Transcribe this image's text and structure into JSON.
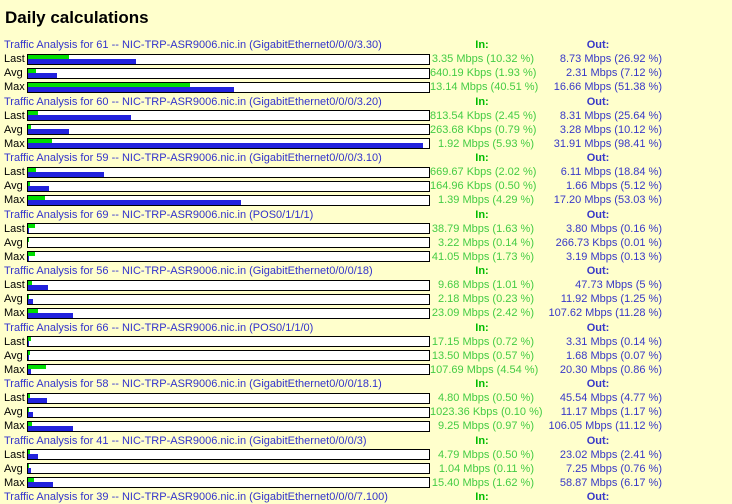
{
  "page": {
    "title": "Daily calculations"
  },
  "columns": {
    "in_label": "In:",
    "out_label": "Out:"
  },
  "colors": {
    "background": "#ffffcc",
    "section_title": "#3333cc",
    "in_text": "#00bb00",
    "out_text": "#3838c8",
    "bar_in": "#00dd00",
    "bar_out": "#2222dd"
  },
  "chart_data": {
    "type": "bar",
    "note": "MRTG-style horizontal dual bars; bar length = percent of link capacity",
    "ylim": [
      0,
      100
    ]
  },
  "sections": [
    {
      "title": "Traffic Analysis for 61 -- NIC-TRP-ASR9006.nic.in (GigabitEthernet0/0/0/3.30)",
      "rows": [
        {
          "label": "Last",
          "in_text": "3.35 Mbps (10.32 %)",
          "in_pct": 10.32,
          "out_text": "8.73 Mbps (26.92 %)",
          "out_pct": 26.92
        },
        {
          "label": "Avg",
          "in_text": "640.19 Kbps (1.93 %)",
          "in_pct": 1.93,
          "out_text": "2.31 Mbps (7.12 %)",
          "out_pct": 7.12
        },
        {
          "label": "Max",
          "in_text": "13.14 Mbps (40.51 %)",
          "in_pct": 40.51,
          "out_text": "16.66 Mbps (51.38 %)",
          "out_pct": 51.38
        }
      ]
    },
    {
      "title": "Traffic Analysis for 60 -- NIC-TRP-ASR9006.nic.in (GigabitEthernet0/0/0/3.20)",
      "rows": [
        {
          "label": "Last",
          "in_text": "813.54 Kbps (2.45 %)",
          "in_pct": 2.45,
          "out_text": "8.31 Mbps (25.64 %)",
          "out_pct": 25.64
        },
        {
          "label": "Avg",
          "in_text": "263.68 Kbps (0.79 %)",
          "in_pct": 0.79,
          "out_text": "3.28 Mbps (10.12 %)",
          "out_pct": 10.12
        },
        {
          "label": "Max",
          "in_text": "1.92 Mbps (5.93 %)",
          "in_pct": 5.93,
          "out_text": "31.91 Mbps (98.41 %)",
          "out_pct": 98.41
        }
      ]
    },
    {
      "title": "Traffic Analysis for 59 -- NIC-TRP-ASR9006.nic.in (GigabitEthernet0/0/0/3.10)",
      "rows": [
        {
          "label": "Last",
          "in_text": "669.67 Kbps (2.02 %)",
          "in_pct": 2.02,
          "out_text": "6.11 Mbps (18.84 %)",
          "out_pct": 18.84
        },
        {
          "label": "Avg",
          "in_text": "164.96 Kbps (0.50 %)",
          "in_pct": 0.5,
          "out_text": "1.66 Mbps (5.12 %)",
          "out_pct": 5.12
        },
        {
          "label": "Max",
          "in_text": "1.39 Mbps (4.29 %)",
          "in_pct": 4.29,
          "out_text": "17.20 Mbps (53.03 %)",
          "out_pct": 53.03
        }
      ]
    },
    {
      "title": "Traffic Analysis for 69 -- NIC-TRP-ASR9006.nic.in (POS0/1/1/1)",
      "rows": [
        {
          "label": "Last",
          "in_text": "38.79 Mbps (1.63 %)",
          "in_pct": 1.63,
          "out_text": "3.80 Mbps (0.16 %)",
          "out_pct": 0.16
        },
        {
          "label": "Avg",
          "in_text": "3.22 Mbps (0.14 %)",
          "in_pct": 0.14,
          "out_text": "266.73 Kbps (0.01 %)",
          "out_pct": 0.01
        },
        {
          "label": "Max",
          "in_text": "41.05 Mbps (1.73 %)",
          "in_pct": 1.73,
          "out_text": "3.19 Mbps (0.13 %)",
          "out_pct": 0.13
        }
      ]
    },
    {
      "title": "Traffic Analysis for 56 -- NIC-TRP-ASR9006.nic.in (GigabitEthernet0/0/0/18)",
      "rows": [
        {
          "label": "Last",
          "in_text": "9.68 Mbps (1.01 %)",
          "in_pct": 1.01,
          "out_text": "47.73 Mbps (5 %)",
          "out_pct": 5.0
        },
        {
          "label": "Avg",
          "in_text": "2.18 Mbps (0.23 %)",
          "in_pct": 0.23,
          "out_text": "11.92 Mbps (1.25 %)",
          "out_pct": 1.25
        },
        {
          "label": "Max",
          "in_text": "23.09 Mbps (2.42 %)",
          "in_pct": 2.42,
          "out_text": "107.62 Mbps (11.28 %)",
          "out_pct": 11.28
        }
      ]
    },
    {
      "title": "Traffic Analysis for 66 -- NIC-TRP-ASR9006.nic.in (POS0/1/1/0)",
      "rows": [
        {
          "label": "Last",
          "in_text": "17.15 Mbps (0.72 %)",
          "in_pct": 0.72,
          "out_text": "3.31 Mbps (0.14 %)",
          "out_pct": 0.14
        },
        {
          "label": "Avg",
          "in_text": "13.50 Mbps (0.57 %)",
          "in_pct": 0.57,
          "out_text": "1.68 Mbps (0.07 %)",
          "out_pct": 0.07
        },
        {
          "label": "Max",
          "in_text": "107.69 Mbps (4.54 %)",
          "in_pct": 4.54,
          "out_text": "20.30 Mbps (0.86 %)",
          "out_pct": 0.86
        }
      ]
    },
    {
      "title": "Traffic Analysis for 58 -- NIC-TRP-ASR9006.nic.in (GigabitEthernet0/0/0/18.1)",
      "rows": [
        {
          "label": "Last",
          "in_text": "4.80 Mbps (0.50 %)",
          "in_pct": 0.5,
          "out_text": "45.54 Mbps (4.77 %)",
          "out_pct": 4.77
        },
        {
          "label": "Avg",
          "in_text": "1023.36 Kbps (0.10 %)",
          "in_pct": 0.1,
          "out_text": "11.17 Mbps (1.17 %)",
          "out_pct": 1.17
        },
        {
          "label": "Max",
          "in_text": "9.25 Mbps (0.97 %)",
          "in_pct": 0.97,
          "out_text": "106.05 Mbps (11.12 %)",
          "out_pct": 11.12
        }
      ]
    },
    {
      "title": "Traffic Analysis for 41 -- NIC-TRP-ASR9006.nic.in (GigabitEthernet0/0/0/3)",
      "rows": [
        {
          "label": "Last",
          "in_text": "4.79 Mbps (0.50 %)",
          "in_pct": 0.5,
          "out_text": "23.02 Mbps (2.41 %)",
          "out_pct": 2.41
        },
        {
          "label": "Avg",
          "in_text": "1.04 Mbps (0.11 %)",
          "in_pct": 0.11,
          "out_text": "7.25 Mbps (0.76 %)",
          "out_pct": 0.76
        },
        {
          "label": "Max",
          "in_text": "15.40 Mbps (1.62 %)",
          "in_pct": 1.62,
          "out_text": "58.87 Mbps (6.17 %)",
          "out_pct": 6.17
        }
      ]
    },
    {
      "title": "Traffic Analysis for 39 -- NIC-TRP-ASR9006.nic.in (GigabitEthernet0/0/0/7.100)",
      "rows": []
    }
  ]
}
